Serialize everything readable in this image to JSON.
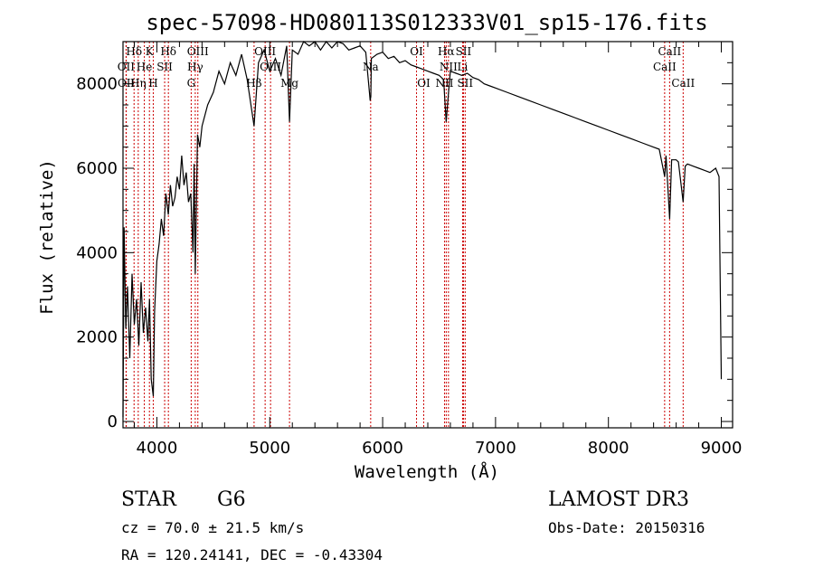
{
  "chart_data": {
    "type": "line",
    "title": "spec-57098-HD080113S012333V01_sp15-176.fits",
    "xlabel": "Wavelength (Å)",
    "ylabel": "Flux (relative)",
    "xlim": [
      3700,
      9100
    ],
    "ylim": [
      -150,
      9000
    ],
    "xticks": [
      4000,
      5000,
      6000,
      7000,
      8000,
      9000
    ],
    "xtick_labels": [
      "4000",
      "5000",
      "6000",
      "7000",
      "8000",
      "9000"
    ],
    "yticks": [
      0,
      2000,
      4000,
      6000,
      8000
    ],
    "ytick_labels": [
      "0",
      "2000",
      "4000",
      "6000",
      "8000"
    ],
    "series": [
      {
        "name": "spectrum",
        "x": [
          3700,
          3710,
          3725,
          3740,
          3760,
          3780,
          3800,
          3820,
          3840,
          3860,
          3880,
          3900,
          3920,
          3935,
          3950,
          3968,
          3980,
          4000,
          4020,
          4040,
          4060,
          4080,
          4101,
          4120,
          4140,
          4160,
          4180,
          4200,
          4220,
          4240,
          4260,
          4280,
          4300,
          4320,
          4330,
          4340,
          4360,
          4380,
          4400,
          4450,
          4500,
          4550,
          4600,
          4650,
          4700,
          4750,
          4800,
          4861,
          4900,
          4950,
          5000,
          5050,
          5100,
          5150,
          5175,
          5200,
          5250,
          5300,
          5350,
          5400,
          5450,
          5500,
          5550,
          5600,
          5650,
          5700,
          5750,
          5800,
          5850,
          5890,
          5895,
          5900,
          5950,
          6000,
          6050,
          6100,
          6150,
          6200,
          6250,
          6300,
          6350,
          6400,
          6450,
          6500,
          6540,
          6563,
          6575,
          6590,
          6600,
          6650,
          6700,
          6750,
          6800,
          6850,
          6900,
          6950,
          7000,
          7100,
          7200,
          7300,
          7400,
          7500,
          7600,
          7700,
          7800,
          7900,
          8000,
          8100,
          8200,
          8300,
          8400,
          8450,
          8498,
          8510,
          8542,
          8560,
          8600,
          8620,
          8662,
          8680,
          8700,
          8750,
          8800,
          8850,
          8900,
          8950,
          8980,
          9000
        ],
        "y": [
          100,
          4600,
          2200,
          3200,
          1500,
          3500,
          2300,
          2900,
          1800,
          3300,
          2100,
          2700,
          1900,
          2900,
          1000,
          600,
          2600,
          3800,
          4200,
          4800,
          4400,
          5400,
          4900,
          5600,
          5100,
          5300,
          5800,
          5500,
          6300,
          5600,
          5900,
          5200,
          5400,
          4000,
          6100,
          3500,
          6800,
          6500,
          7000,
          7500,
          7800,
          8300,
          8000,
          8500,
          8200,
          8700,
          8100,
          7000,
          8500,
          8800,
          8300,
          8600,
          8200,
          8900,
          7100,
          8800,
          8700,
          9000,
          8900,
          9100,
          8800,
          9050,
          8850,
          9000,
          8950,
          8800,
          8850,
          8900,
          8750,
          7600,
          7700,
          8600,
          8700,
          8750,
          8600,
          8650,
          8500,
          8550,
          8450,
          8400,
          8350,
          8300,
          8250,
          8200,
          8100,
          7100,
          7500,
          8000,
          8300,
          8250,
          8200,
          8250,
          8150,
          8100,
          8000,
          7950,
          7900,
          7800,
          7700,
          7600,
          7500,
          7400,
          7300,
          7200,
          7100,
          7000,
          6900,
          6800,
          6700,
          6600,
          6500,
          6450,
          5800,
          6300,
          4800,
          6200,
          6200,
          6150,
          5200,
          6050,
          6100,
          6050,
          6000,
          5950,
          5900,
          6000,
          5800,
          1000
        ]
      }
    ],
    "lines": [
      {
        "label": "Hδ",
        "x": 3798,
        "row": 0
      },
      {
        "label": "OII",
        "x": 3727,
        "row": 1
      },
      {
        "label": "OII",
        "x": 3729,
        "row": 2
      },
      {
        "label": "He",
        "x": 3889,
        "row": 1
      },
      {
        "label": "Hη",
        "x": 3835,
        "row": 2
      },
      {
        "label": "K",
        "x": 3934,
        "row": 0
      },
      {
        "label": "SII",
        "x": 4069,
        "row": 1
      },
      {
        "label": "H",
        "x": 3968,
        "row": 2
      },
      {
        "label": "Hδ",
        "x": 4102,
        "row": 0
      },
      {
        "label": "OIII",
        "x": 4363,
        "row": 0
      },
      {
        "label": "Hγ",
        "x": 4340,
        "row": 1
      },
      {
        "label": "G",
        "x": 4304,
        "row": 2
      },
      {
        "label": "OIII",
        "x": 4959,
        "row": 0
      },
      {
        "label": "Hβ",
        "x": 4861,
        "row": 2
      },
      {
        "label": "OIII",
        "x": 5007,
        "row": 1
      },
      {
        "label": "Mg",
        "x": 5175,
        "row": 2
      },
      {
        "label": "Na",
        "x": 5894,
        "row": 1
      },
      {
        "label": "OI",
        "x": 6300,
        "row": 0
      },
      {
        "label": "OI",
        "x": 6364,
        "row": 2
      },
      {
        "label": "Hα",
        "x": 6563,
        "row": 0
      },
      {
        "label": "NII",
        "x": 6583,
        "row": 1
      },
      {
        "label": "NII",
        "x": 6548,
        "row": 2
      },
      {
        "label": "SII",
        "x": 6716,
        "row": 0
      },
      {
        "label": "Li",
        "x": 6708,
        "row": 1
      },
      {
        "label": "SII",
        "x": 6731,
        "row": 2
      },
      {
        "label": "CaII",
        "x": 8542,
        "row": 0
      },
      {
        "label": "CaII",
        "x": 8498,
        "row": 1
      },
      {
        "label": "CaII",
        "x": 8662,
        "row": 2
      }
    ]
  },
  "info": {
    "class_label": "STAR",
    "subclass": "G6",
    "survey": "LAMOST DR3",
    "redshift": "cz = 70.0 ± 21.5 km/s",
    "obs_date": "Obs-Date: 20150316",
    "coords": "RA = 120.24141, DEC =  -0.43304"
  },
  "colors": {
    "axis": "#000000",
    "spectrum": "#000000",
    "line_marker": "#cc0000"
  }
}
